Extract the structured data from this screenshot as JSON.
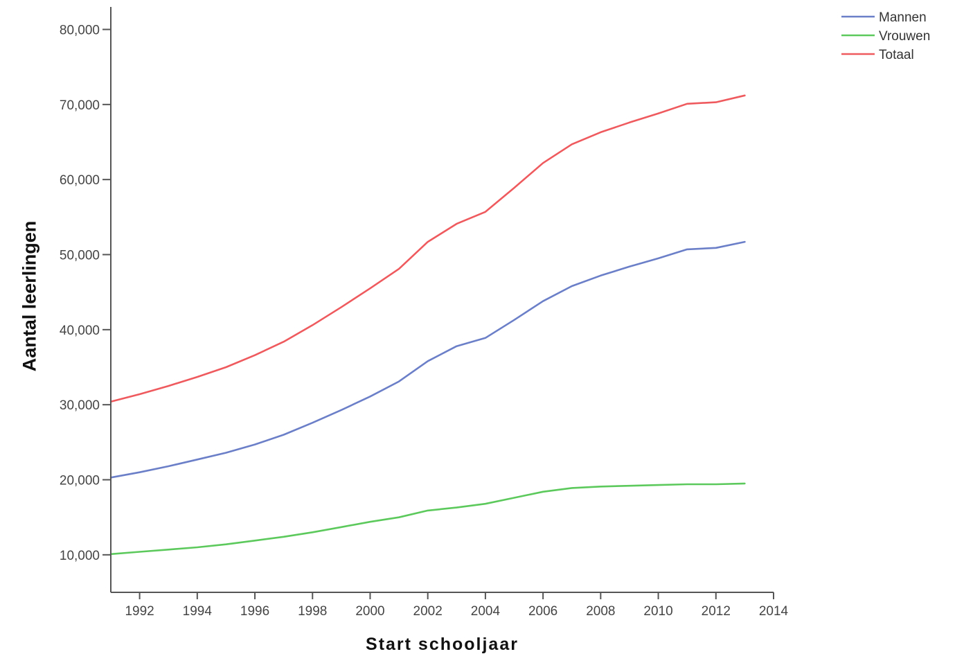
{
  "chart_data": {
    "type": "line",
    "title": "",
    "xlabel": "Start schooljaar",
    "ylabel": "Aantal leerlingen",
    "xlim": [
      1991,
      2014
    ],
    "ylim": [
      5000,
      83000
    ],
    "x_ticks": [
      1992,
      1994,
      1996,
      1998,
      2000,
      2002,
      2004,
      2006,
      2008,
      2010,
      2012,
      2014
    ],
    "x_tick_labels": [
      "1992",
      "1994",
      "1996",
      "1998",
      "2000",
      "2002",
      "2004",
      "2006",
      "2008",
      "2010",
      "2012",
      "2014"
    ],
    "y_ticks": [
      10000,
      20000,
      30000,
      40000,
      50000,
      60000,
      70000,
      80000
    ],
    "y_tick_labels": [
      "10,000",
      "20,000",
      "30,000",
      "40,000",
      "50,000",
      "60,000",
      "70,000",
      "80,000"
    ],
    "grid": false,
    "legend_position": "top-right",
    "x": [
      1991,
      1992,
      1993,
      1994,
      1995,
      1996,
      1997,
      1998,
      1999,
      2000,
      2001,
      2002,
      2003,
      2004,
      2005,
      2006,
      2007,
      2008,
      2009,
      2010,
      2011,
      2012,
      2013
    ],
    "series": [
      {
        "name": "Mannen",
        "color": "#6b7fc8",
        "values": [
          20300,
          21000,
          21800,
          22700,
          23600,
          24700,
          26000,
          27600,
          29300,
          31100,
          33100,
          35800,
          37800,
          38900,
          41300,
          43800,
          45800,
          47200,
          48400,
          49500,
          50700,
          50900,
          51700
        ]
      },
      {
        "name": "Vrouwen",
        "color": "#5cc95c",
        "values": [
          10100,
          10400,
          10700,
          11000,
          11400,
          11900,
          12400,
          13000,
          13700,
          14400,
          15000,
          15900,
          16300,
          16800,
          17600,
          18400,
          18900,
          19100,
          19200,
          19300,
          19400,
          19400,
          19500
        ]
      },
      {
        "name": "Totaal",
        "color": "#ee5a5e",
        "values": [
          30400,
          31400,
          32500,
          33700,
          35000,
          36600,
          38400,
          40600,
          43000,
          45500,
          48100,
          51700,
          54100,
          55700,
          58900,
          62200,
          64700,
          66300,
          67600,
          68800,
          70100,
          70300,
          71200
        ]
      }
    ]
  }
}
